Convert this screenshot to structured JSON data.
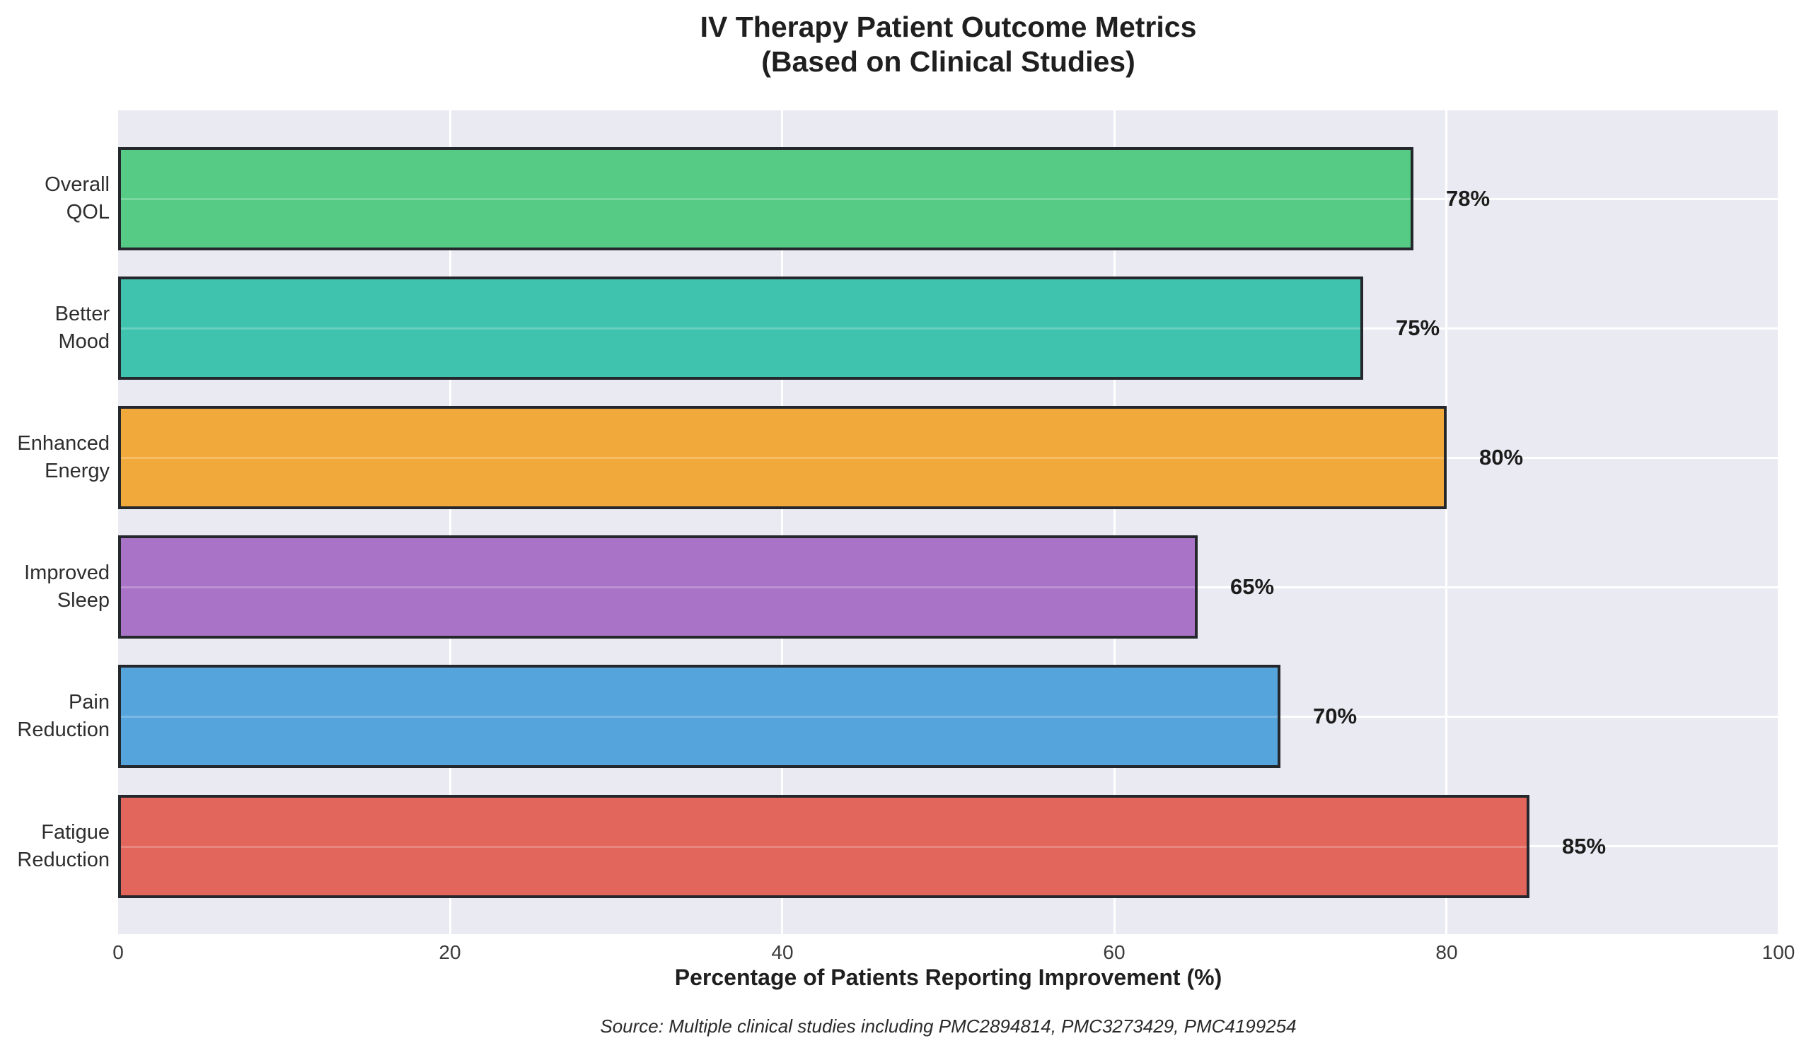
{
  "title": {
    "line1": "IV Therapy Patient Outcome Metrics",
    "line2": "(Based on Clinical Studies)"
  },
  "chart_data": {
    "type": "bar",
    "orientation": "horizontal",
    "title": "IV Therapy Patient Outcome Metrics (Based on Clinical Studies)",
    "categories": [
      "Overall QOL",
      "Better Mood",
      "Enhanced Energy",
      "Improved Sleep",
      "Pain Reduction",
      "Fatigue Reduction"
    ],
    "category_label_lines": [
      [
        "Overall",
        "QOL"
      ],
      [
        "Better",
        "Mood"
      ],
      [
        "Enhanced",
        "Energy"
      ],
      [
        "Improved",
        "Sleep"
      ],
      [
        "Pain",
        "Reduction"
      ],
      [
        "Fatigue",
        "Reduction"
      ]
    ],
    "values": [
      78,
      75,
      80,
      65,
      70,
      85
    ],
    "value_labels": [
      "78%",
      "75%",
      "80%",
      "65%",
      "70%",
      "85%"
    ],
    "bar_colors": [
      "#56cb86",
      "#40c3ae",
      "#f2a93c",
      "#a974c7",
      "#55a5dc",
      "#e2665c"
    ],
    "bar_edge_color": "#24272b",
    "xlabel": "Percentage of Patients Reporting Improvement (%)",
    "ylabel": "",
    "xlim": [
      0,
      100
    ],
    "x_ticks": [
      "0",
      "20",
      "40",
      "60",
      "80",
      "100"
    ],
    "grid": true,
    "legend": "none",
    "plot_background": "#eaeaf3",
    "gridline_color": "#ffffff"
  },
  "source_note": "Source: Multiple clinical studies including PMC2894814, PMC3273429, PMC4199254"
}
